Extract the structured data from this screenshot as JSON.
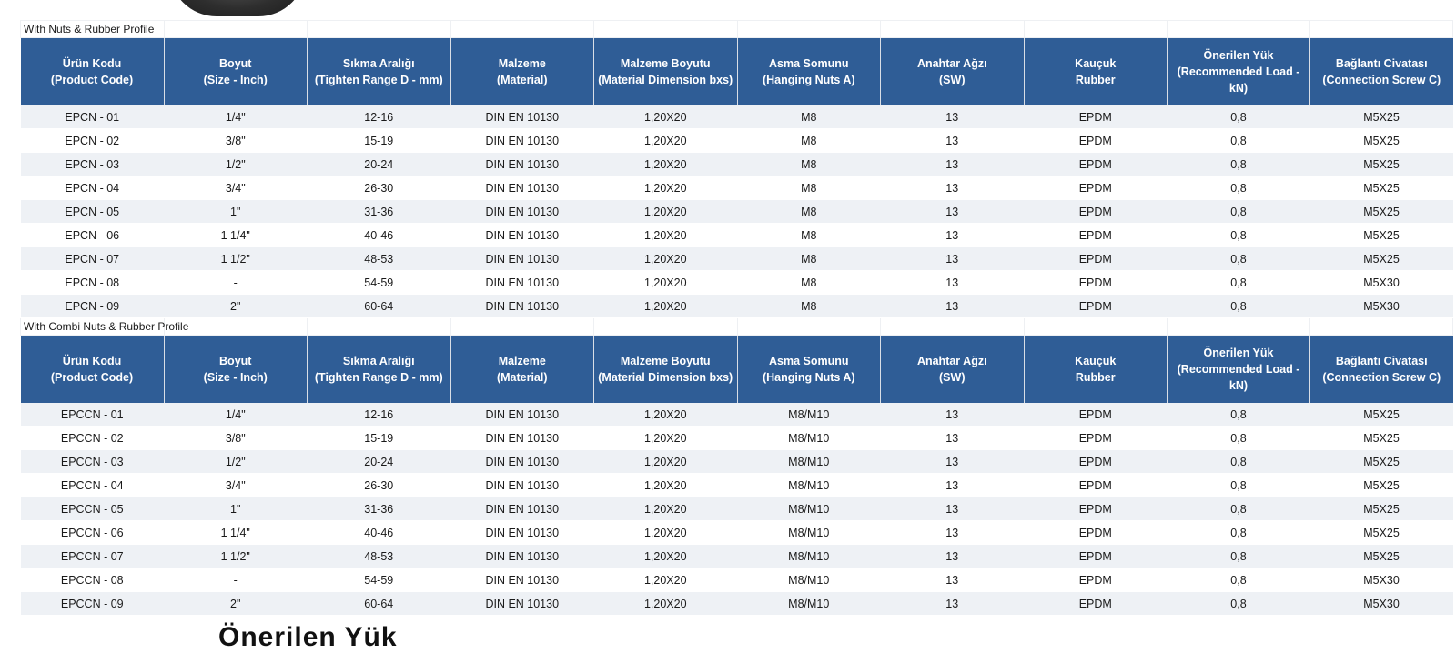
{
  "sections": [
    {
      "title": "With Nuts & Rubber Profile",
      "headers": [
        [
          "Ürün Kodu",
          "(Product Code)"
        ],
        [
          "Boyut",
          "(Size - Inch)"
        ],
        [
          "Sıkma Aralığı",
          "(Tighten Range D - mm)"
        ],
        [
          "Malzeme",
          "(Material)"
        ],
        [
          "Malzeme Boyutu",
          "(Material Dimension bxs)"
        ],
        [
          "Asma Somunu",
          "(Hanging Nuts A)"
        ],
        [
          "Anahtar Ağzı",
          "(SW)"
        ],
        [
          "Kauçuk",
          "Rubber"
        ],
        [
          "Önerilen Yük",
          "(Recommended Load -",
          "kN)"
        ],
        [
          "Bağlantı Civatası",
          "(Connection Screw C)"
        ]
      ],
      "rows": [
        [
          "EPCN - 01",
          "1/4\"",
          "12-16",
          "DIN EN 10130",
          "1,20X20",
          "M8",
          "13",
          "EPDM",
          "0,8",
          "M5X25"
        ],
        [
          "EPCN - 02",
          "3/8\"",
          "15-19",
          "DIN EN 10130",
          "1,20X20",
          "M8",
          "13",
          "EPDM",
          "0,8",
          "M5X25"
        ],
        [
          "EPCN - 03",
          "1/2\"",
          "20-24",
          "DIN EN 10130",
          "1,20X20",
          "M8",
          "13",
          "EPDM",
          "0,8",
          "M5X25"
        ],
        [
          "EPCN - 04",
          "3/4\"",
          "26-30",
          "DIN EN 10130",
          "1,20X20",
          "M8",
          "13",
          "EPDM",
          "0,8",
          "M5X25"
        ],
        [
          "EPCN - 05",
          "1\"",
          "31-36",
          "DIN EN 10130",
          "1,20X20",
          "M8",
          "13",
          "EPDM",
          "0,8",
          "M5X25"
        ],
        [
          "EPCN - 06",
          "1 1/4\"",
          "40-46",
          "DIN EN 10130",
          "1,20X20",
          "M8",
          "13",
          "EPDM",
          "0,8",
          "M5X25"
        ],
        [
          "EPCN - 07",
          "1 1/2\"",
          "48-53",
          "DIN EN 10130",
          "1,20X20",
          "M8",
          "13",
          "EPDM",
          "0,8",
          "M5X25"
        ],
        [
          "EPCN - 08",
          "-",
          "54-59",
          "DIN EN 10130",
          "1,20X20",
          "M8",
          "13",
          "EPDM",
          "0,8",
          "M5X30"
        ],
        [
          "EPCN - 09",
          "2\"",
          "60-64",
          "DIN EN 10130",
          "1,20X20",
          "M8",
          "13",
          "EPDM",
          "0,8",
          "M5X30"
        ]
      ]
    },
    {
      "title": "With Combi Nuts & Rubber Profile",
      "headers": [
        [
          "Ürün Kodu",
          "(Product Code)"
        ],
        [
          "Boyut",
          "(Size - Inch)"
        ],
        [
          "Sıkma Aralığı",
          "(Tighten Range D - mm)"
        ],
        [
          "Malzeme",
          "(Material)"
        ],
        [
          "Malzeme Boyutu",
          "(Material Dimension bxs)"
        ],
        [
          "Asma Somunu",
          "(Hanging Nuts A)"
        ],
        [
          "Anahtar Ağzı",
          "(SW)"
        ],
        [
          "Kauçuk",
          "Rubber"
        ],
        [
          "Önerilen Yük",
          "(Recommended Load -",
          "kN)"
        ],
        [
          "Bağlantı Civatası",
          "(Connection Screw C)"
        ]
      ],
      "rows": [
        [
          "EPCCN - 01",
          "1/4\"",
          "12-16",
          "DIN EN 10130",
          "1,20X20",
          "M8/M10",
          "13",
          "EPDM",
          "0,8",
          "M5X25"
        ],
        [
          "EPCCN - 02",
          "3/8\"",
          "15-19",
          "DIN EN 10130",
          "1,20X20",
          "M8/M10",
          "13",
          "EPDM",
          "0,8",
          "M5X25"
        ],
        [
          "EPCCN - 03",
          "1/2\"",
          "20-24",
          "DIN EN 10130",
          "1,20X20",
          "M8/M10",
          "13",
          "EPDM",
          "0,8",
          "M5X25"
        ],
        [
          "EPCCN - 04",
          "3/4\"",
          "26-30",
          "DIN EN 10130",
          "1,20X20",
          "M8/M10",
          "13",
          "EPDM",
          "0,8",
          "M5X25"
        ],
        [
          "EPCCN - 05",
          "1\"",
          "31-36",
          "DIN EN 10130",
          "1,20X20",
          "M8/M10",
          "13",
          "EPDM",
          "0,8",
          "M5X25"
        ],
        [
          "EPCCN - 06",
          "1 1/4\"",
          "40-46",
          "DIN EN 10130",
          "1,20X20",
          "M8/M10",
          "13",
          "EPDM",
          "0,8",
          "M5X25"
        ],
        [
          "EPCCN - 07",
          "1 1/2\"",
          "48-53",
          "DIN EN 10130",
          "1,20X20",
          "M8/M10",
          "13",
          "EPDM",
          "0,8",
          "M5X25"
        ],
        [
          "EPCCN - 08",
          "-",
          "54-59",
          "DIN EN 10130",
          "1,20X20",
          "M8/M10",
          "13",
          "EPDM",
          "0,8",
          "M5X30"
        ],
        [
          "EPCCN - 09",
          "2\"",
          "60-64",
          "DIN EN 10130",
          "1,20X20",
          "M8/M10",
          "13",
          "EPDM",
          "0,8",
          "M5X30"
        ]
      ]
    }
  ],
  "bottom_heading": "Önerilen Yük",
  "colors": {
    "header_bg": "#2f5d96",
    "header_text": "#ffffff",
    "row_stripe": "#eef1f5"
  }
}
